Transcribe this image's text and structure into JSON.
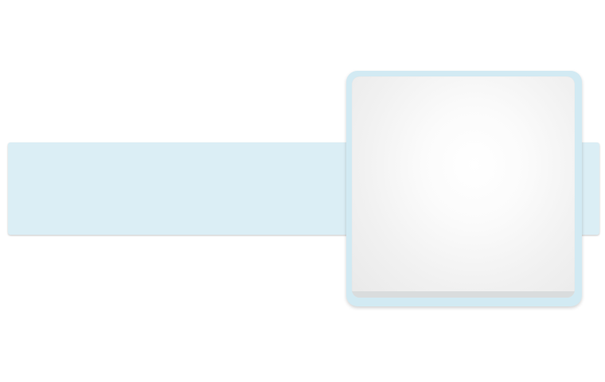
{
  "colors": {
    "page_background": "#ffffff",
    "banner_fill": "#dbeef5",
    "card_frame": "#d2eaf3",
    "card_panel_center": "#ffffff",
    "card_panel_edge": "#e9e9e9",
    "card_footer": "#d9dcdd"
  },
  "banner": {
    "text": ""
  },
  "card": {
    "text": ""
  }
}
